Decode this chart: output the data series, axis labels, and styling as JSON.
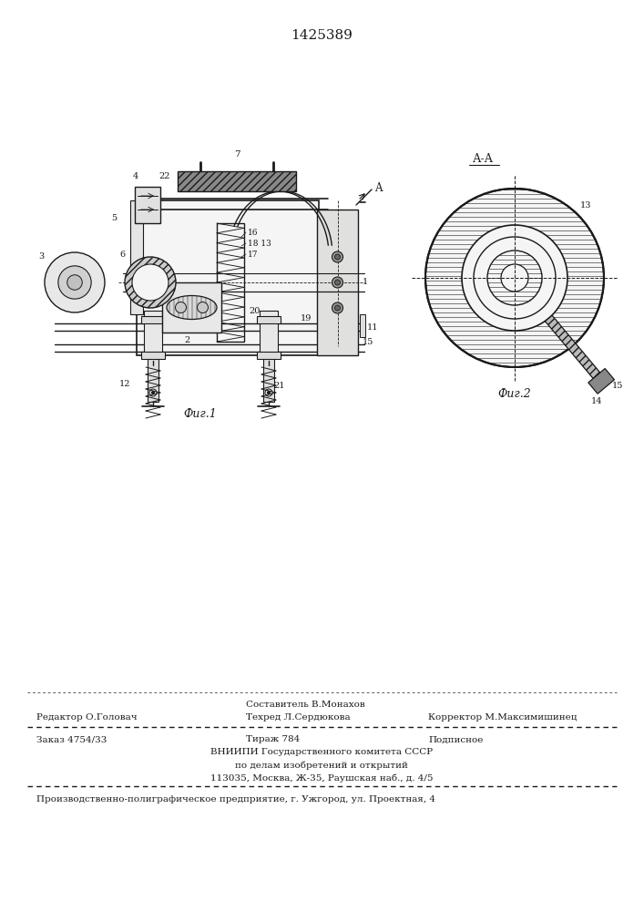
{
  "patent_number": "1425389",
  "fig1_label": "Фиг.1",
  "fig2_label": "Фиг.2",
  "section_label": "А-А",
  "editor_line": "Редактор О.Головач",
  "composer_line1": "Составитель В.Монахов",
  "composer_line2": "Техред Л.Сердюкова",
  "corrector_line": "Корректор М.Максимишинец",
  "order_line": "Заказ 4754/33",
  "print_line": "Тираж 784",
  "subscription_line": "Подписное",
  "vniipi_line1": "ВНИИПИ Государственного комитета СССР",
  "vniipi_line2": "по делам изобретений и открытий",
  "vniipi_line3": "113035, Москва, Ж-35, Раушская наб., д. 4/5",
  "production_line": "Производственно-полиграфическое предприятие, г. Ужгород, ул. Проектная, 4",
  "bg_color": "#ffffff",
  "line_color": "#1a1a1a"
}
